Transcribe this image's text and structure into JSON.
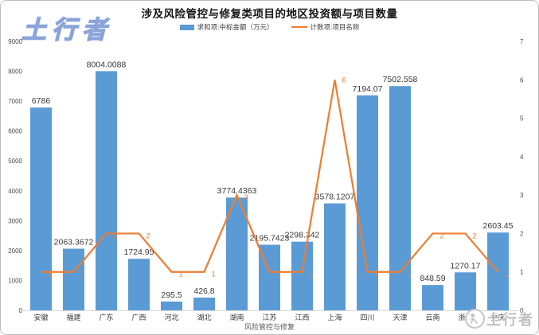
{
  "watermarks": {
    "top_left": "土行者",
    "bottom_right": "土行者"
  },
  "chart_data": {
    "type": "bar",
    "combo": "bar+line, dual axis",
    "title": "涉及风险管控与修复类项目的地区投资额与项目数量",
    "xlabel": "风险管控与修复",
    "legend_position": "top",
    "grid": false,
    "categories": [
      "安徽",
      "福建",
      "广东",
      "广西",
      "河北",
      "湖北",
      "湖南",
      "江苏",
      "江西",
      "上海",
      "四川",
      "天津",
      "云南",
      "浙江",
      "重庆"
    ],
    "series": [
      {
        "name": "求和项:中标金额（万元）",
        "chart_type": "bar",
        "axis": "left",
        "color": "#5B9BD5",
        "values": [
          6786,
          2063.3672,
          8004.0088,
          1724.95,
          295.5,
          426.8,
          3774.4363,
          2195.7423,
          2298.342,
          3578.1207,
          7194.07,
          7502.558,
          848.59,
          1270.17,
          2603.45
        ],
        "labels": [
          "6786",
          "2063.3672",
          "8004.0088",
          "1724.95",
          "295.5",
          "426.8",
          "3774.4363",
          "2195.7423",
          "2298.342",
          "3578.1207",
          "7194.07",
          "7502.558",
          "848.59",
          "1270.17",
          "2603.45"
        ]
      },
      {
        "name": "计数项:项目名称",
        "chart_type": "line",
        "axis": "right",
        "color": "#ED7D31",
        "values": [
          1,
          1,
          2,
          2,
          1,
          1,
          3,
          1,
          1,
          6,
          1,
          1,
          2,
          2,
          1
        ]
      }
    ],
    "left_axis": {
      "min": 0,
      "max": 9000,
      "step": 1000
    },
    "right_axis": {
      "min": 0,
      "max": 7,
      "step": 1
    }
  }
}
